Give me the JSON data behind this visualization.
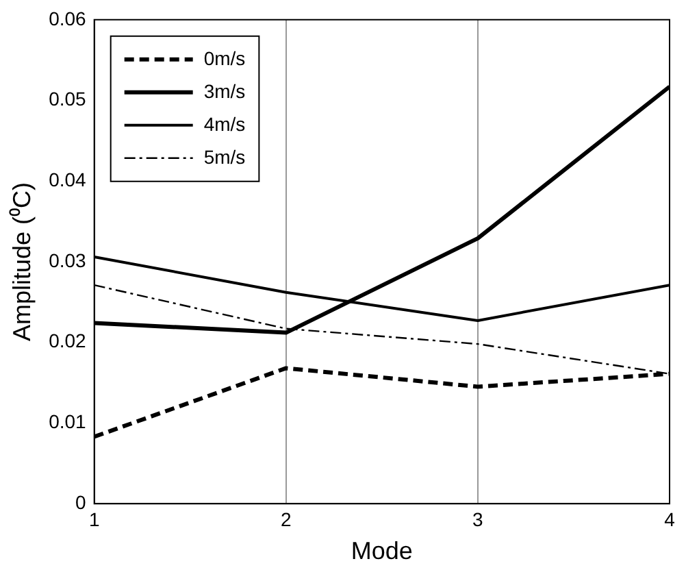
{
  "chart_data": {
    "type": "line",
    "xlabel": "Mode",
    "ylabel": "Amplitude (⁰C)",
    "x": [
      1,
      2,
      3,
      4
    ],
    "series": [
      {
        "name": "0m/s",
        "color": "#000000",
        "line_style": "dashed",
        "values": [
          0.0083,
          0.0168,
          0.0145,
          0.0161
        ]
      },
      {
        "name": "3m/s",
        "color": "#000000",
        "line_style": "solid",
        "values": [
          0.0224,
          0.0212,
          0.0329,
          0.0517
        ]
      },
      {
        "name": "4m/s",
        "color": "#000000",
        "line_style": "solid",
        "values": [
          0.0306,
          0.0262,
          0.0227,
          0.0271
        ]
      },
      {
        "name": "5m/s",
        "color": "#000000",
        "line_style": "dashdot",
        "values": [
          0.0271,
          0.0217,
          0.0198,
          0.0161
        ]
      }
    ],
    "xlim": [
      1,
      4
    ],
    "xticks": [
      1,
      2,
      3,
      4
    ],
    "ylim": [
      0,
      0.06
    ],
    "yticks": [
      0,
      0.01,
      0.02,
      0.03,
      0.04,
      0.05,
      0.06
    ],
    "grid": "x",
    "legend": "top left",
    "marker": "none"
  }
}
